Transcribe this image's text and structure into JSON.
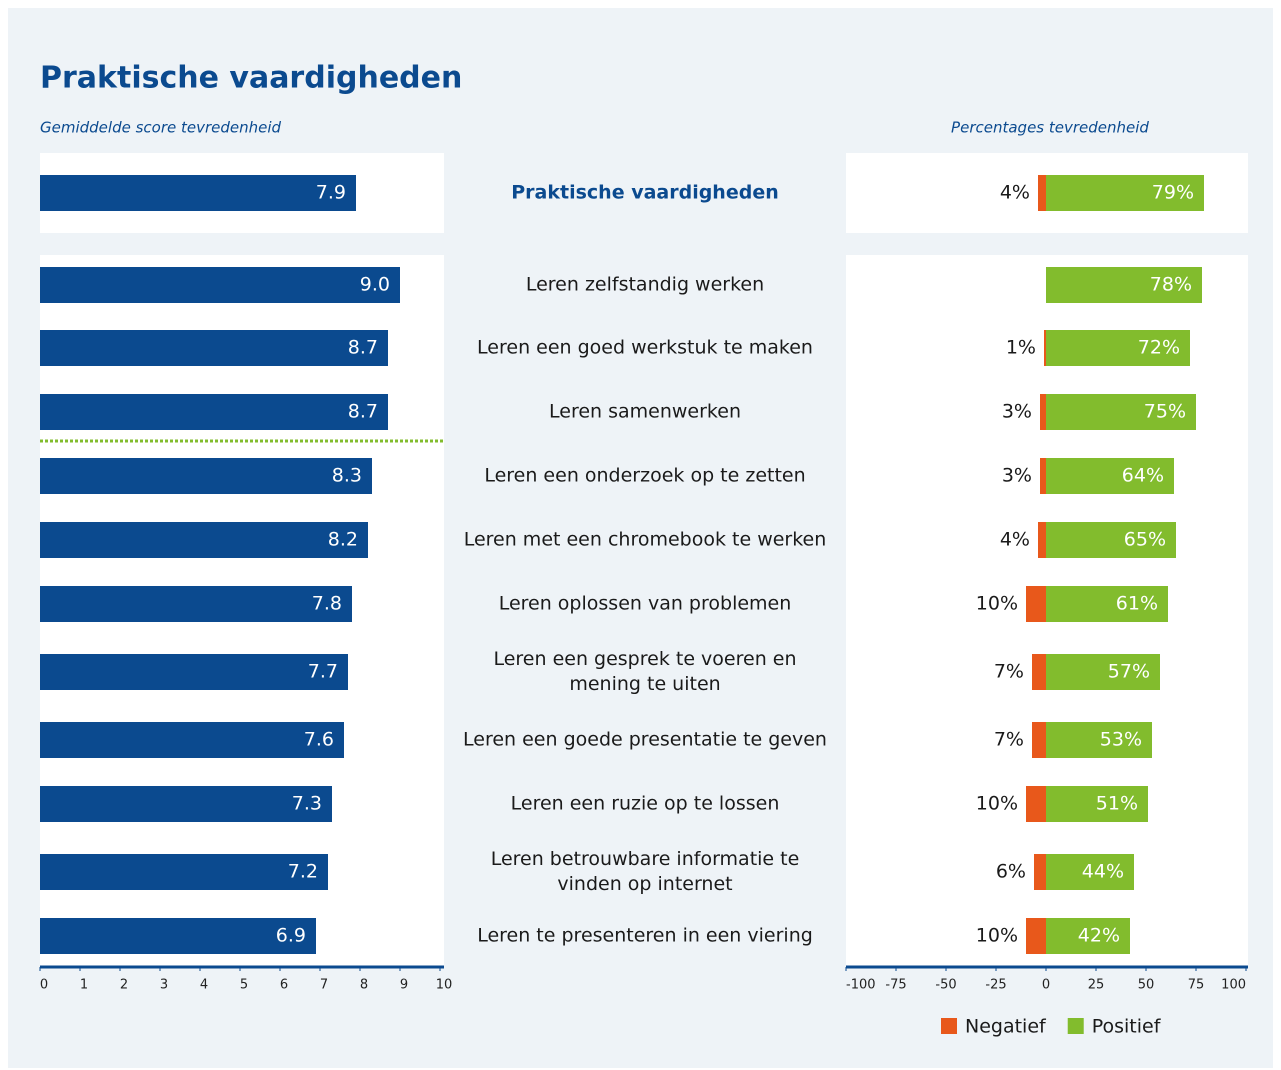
{
  "chart_data": {
    "type": "bar",
    "title": "Praktische vaardigheden",
    "score_panel": {
      "subtitle": "Gemiddelde score tevredenheid",
      "xlim": [
        0,
        10
      ],
      "xticks": [
        0,
        1,
        2,
        3,
        4,
        5,
        6,
        7,
        8,
        9,
        10
      ],
      "color": "#0b4a8f"
    },
    "percentage_panel": {
      "subtitle": "Percentages tevredenheid",
      "xlim": [
        -100,
        100
      ],
      "xticks": [
        -100,
        -75,
        -50,
        -25,
        0,
        25,
        50,
        75,
        100
      ],
      "legend": "bottom"
    },
    "total": {
      "category": "Praktische vaardigheden",
      "score": 7.9,
      "score_label": "7.9",
      "negative": 4,
      "negative_label": "4%",
      "positive": 79,
      "positive_label": "79%"
    },
    "categories": [
      "Leren zelfstandig werken",
      "Leren een goed werkstuk te maken",
      "Leren samenwerken",
      "Leren een onderzoek op te zetten",
      "Leren met een chromebook te werken",
      "Leren oplossen van problemen",
      "Leren een gesprek te voeren en mening te uiten",
      "Leren een goede presentatie te geven",
      "Leren een ruzie op te lossen",
      "Leren betrouwbare informatie te vinden op internet",
      "Leren te presenteren in een viering"
    ],
    "scores": {
      "values": [
        9.0,
        8.7,
        8.7,
        8.3,
        8.2,
        7.8,
        7.7,
        7.6,
        7.3,
        7.2,
        6.9
      ],
      "value_labels": [
        "9.0",
        "8.7",
        "8.7",
        "8.3",
        "8.2",
        "7.8",
        "7.7",
        "7.6",
        "7.3",
        "7.2",
        "6.9"
      ]
    },
    "series": [
      {
        "name": "Negatief",
        "color": "#e8581b",
        "values": [
          null,
          1,
          3,
          3,
          4,
          10,
          7,
          7,
          10,
          6,
          10
        ],
        "value_labels": [
          null,
          "1%",
          "3%",
          "3%",
          "4%",
          "10%",
          "7%",
          "7%",
          "10%",
          "6%",
          "10%"
        ]
      },
      {
        "name": "Positief",
        "color": "#82bc2d",
        "values": [
          78,
          72,
          75,
          64,
          65,
          61,
          57,
          53,
          51,
          44,
          42
        ],
        "value_labels": [
          "78%",
          "72%",
          "75%",
          "64%",
          "65%",
          "61%",
          "57%",
          "53%",
          "51%",
          "44%",
          "42%"
        ]
      }
    ]
  }
}
